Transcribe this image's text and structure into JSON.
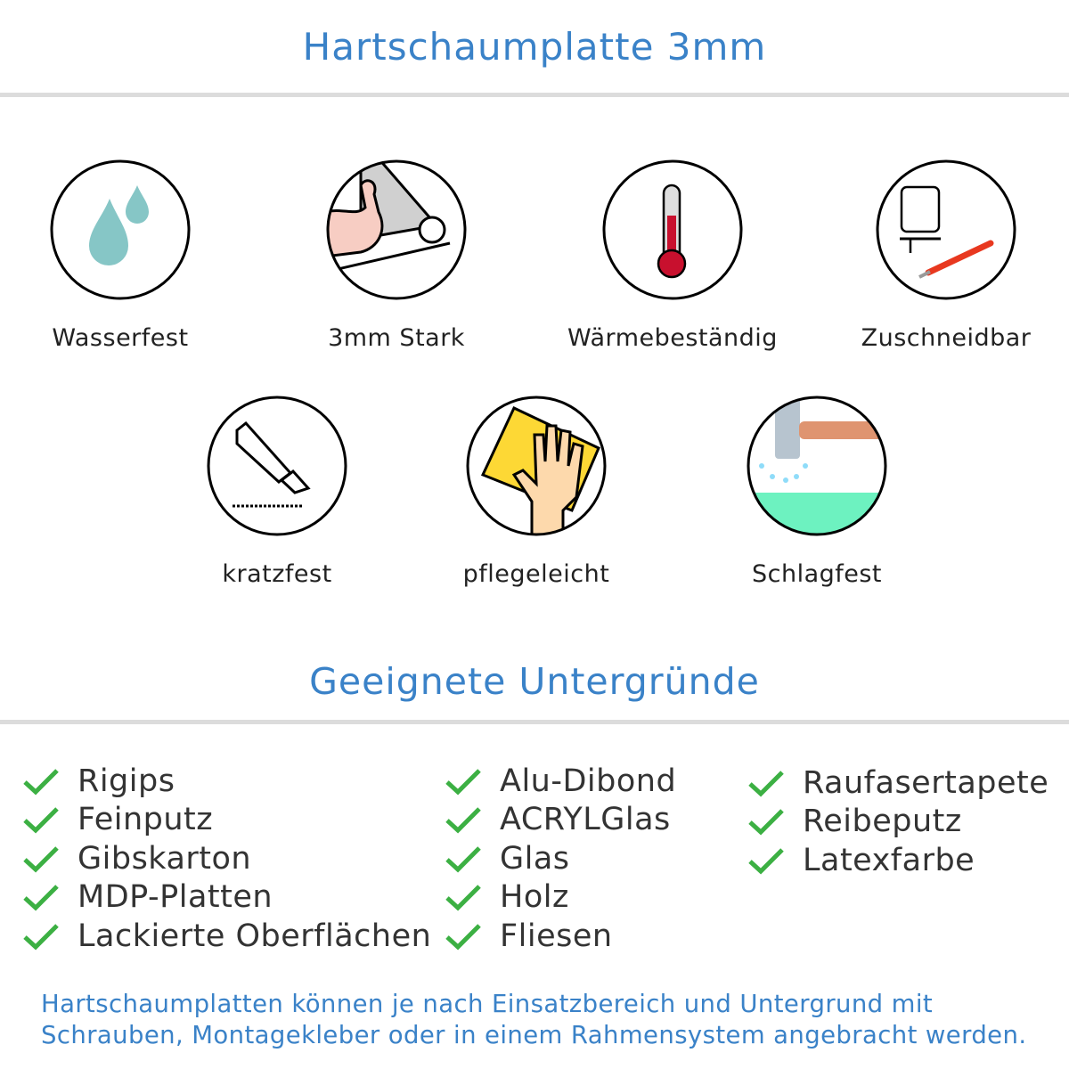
{
  "header": {
    "title": "Hartschaumplatte 3mm"
  },
  "features": [
    {
      "label": "Wasserfest",
      "icon": "water-drops-icon"
    },
    {
      "label": "3mm Stark",
      "icon": "strong-arm-icon"
    },
    {
      "label": "Wärmebeständig",
      "icon": "thermometer-icon"
    },
    {
      "label": "Zuschneidbar",
      "icon": "jigsaw-cutter-icon"
    },
    {
      "label": "kratzfest",
      "icon": "cutter-knife-icon"
    },
    {
      "label": "pflegeleicht",
      "icon": "hand-sponge-icon"
    },
    {
      "label": "Schlagfest",
      "icon": "hammer-icon"
    }
  ],
  "surfaces": {
    "title": "Geeignete Untergründe",
    "check_color": "#3cb043",
    "columns": [
      [
        "Rigips",
        "Feinputz",
        "Gibskarton",
        "MDP-Platten",
        "Lackierte Oberflächen"
      ],
      [
        "Alu-Dibond",
        "ACRYLGlas",
        "Glas",
        "Holz",
        "Fliesen"
      ],
      [
        "Raufasertapete",
        "Reibeputz",
        "Latexfarbe"
      ]
    ]
  },
  "note": {
    "line1": "Hartschaumplatten können je nach Einsatzbereich und Untergrund mit",
    "line2": "Schrauben, Montagekleber oder in einem Rahmensystem angebracht werden."
  }
}
